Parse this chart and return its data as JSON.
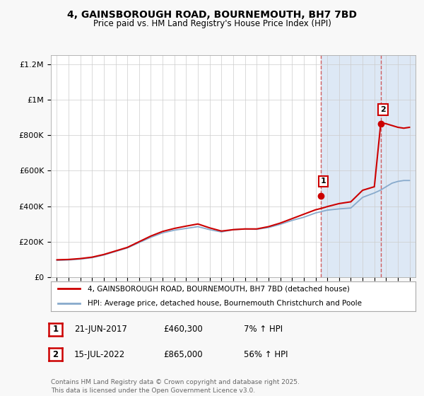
{
  "title": "4, GAINSBOROUGH ROAD, BOURNEMOUTH, BH7 7BD",
  "subtitle": "Price paid vs. HM Land Registry's House Price Index (HPI)",
  "legend_line1": "4, GAINSBOROUGH ROAD, BOURNEMOUTH, BH7 7BD (detached house)",
  "legend_line2": "HPI: Average price, detached house, Bournemouth Christchurch and Poole",
  "annotation1_label": "1",
  "annotation1_date": "21-JUN-2017",
  "annotation1_price": "£460,300",
  "annotation1_hpi": "7% ↑ HPI",
  "annotation2_label": "2",
  "annotation2_date": "15-JUL-2022",
  "annotation2_price": "£865,000",
  "annotation2_hpi": "56% ↑ HPI",
  "footer": "Contains HM Land Registry data © Crown copyright and database right 2025.\nThis data is licensed under the Open Government Licence v3.0.",
  "red_color": "#cc0000",
  "blue_color": "#88aacc",
  "dashed_color": "#cc4444",
  "fig_bg_color": "#f5f5f5",
  "plot_bg_left": "#ffffff",
  "plot_bg_right": "#dde8f5",
  "grid_color": "#cccccc",
  "purchase1_year": 2017.47,
  "purchase1_price": 460300,
  "purchase2_year": 2022.54,
  "purchase2_price": 865000,
  "ylim_max": 1250000,
  "xmin": 1994.5,
  "xmax": 2025.5,
  "hpi_years": [
    1995,
    1996,
    1997,
    1998,
    1999,
    2000,
    2001,
    2002,
    2003,
    2004,
    2005,
    2006,
    2007,
    2008,
    2009,
    2010,
    2011,
    2012,
    2013,
    2014,
    2015,
    2016,
    2017,
    2017.5,
    2018,
    2019,
    2020,
    2021,
    2022,
    2022.5,
    2023,
    2023.5,
    2024,
    2024.5,
    2025
  ],
  "hpi_values": [
    95000,
    97000,
    102000,
    110000,
    125000,
    145000,
    165000,
    195000,
    225000,
    250000,
    265000,
    275000,
    285000,
    268000,
    255000,
    268000,
    272000,
    270000,
    280000,
    298000,
    320000,
    338000,
    362000,
    370000,
    378000,
    385000,
    390000,
    450000,
    475000,
    490000,
    510000,
    530000,
    540000,
    545000,
    545000
  ],
  "red_years": [
    1995,
    1996,
    1997,
    1998,
    1999,
    2000,
    2001,
    2002,
    2003,
    2004,
    2005,
    2006,
    2007,
    2008,
    2009,
    2010,
    2011,
    2012,
    2013,
    2014,
    2015,
    2016,
    2017,
    2017.5,
    2018,
    2019,
    2020,
    2021,
    2022,
    2022.54,
    2022.6,
    2023,
    2023.5,
    2024,
    2024.5,
    2025
  ],
  "red_values": [
    98000,
    100000,
    105000,
    113000,
    128000,
    148000,
    168000,
    200000,
    232000,
    258000,
    275000,
    288000,
    300000,
    278000,
    260000,
    268000,
    272000,
    272000,
    285000,
    305000,
    330000,
    355000,
    380000,
    388000,
    398000,
    415000,
    425000,
    490000,
    510000,
    865000,
    870000,
    865000,
    855000,
    845000,
    840000,
    845000
  ]
}
